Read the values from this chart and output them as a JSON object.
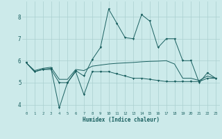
{
  "xlabel": "Humidex (Indice chaleur)",
  "bg_color": "#cceaea",
  "grid_color": "#aacfcf",
  "line_color": "#1a6060",
  "xlim": [
    -0.5,
    23.5
  ],
  "ylim": [
    3.7,
    8.7
  ],
  "xticks": [
    0,
    1,
    2,
    3,
    4,
    5,
    6,
    7,
    8,
    9,
    10,
    11,
    12,
    13,
    14,
    15,
    16,
    17,
    18,
    19,
    20,
    21,
    22,
    23
  ],
  "yticks": [
    4,
    5,
    6,
    7,
    8
  ],
  "line1_x": [
    0,
    1,
    2,
    3,
    4,
    5,
    6,
    7,
    8,
    9,
    10,
    11,
    12,
    13,
    14,
    15,
    16,
    17,
    18,
    19,
    20,
    21,
    22,
    23
  ],
  "line1_y": [
    5.9,
    5.5,
    5.6,
    5.6,
    5.0,
    5.0,
    5.55,
    5.3,
    6.05,
    6.6,
    8.35,
    7.7,
    7.05,
    7.0,
    8.1,
    7.8,
    6.6,
    7.0,
    7.0,
    6.0,
    6.0,
    5.0,
    5.45,
    5.2
  ],
  "line2_x": [
    0,
    1,
    2,
    3,
    4,
    5,
    6,
    7,
    8,
    9,
    10,
    11,
    12,
    13,
    14,
    15,
    16,
    17,
    18,
    19,
    20,
    21,
    22,
    23
  ],
  "line2_y": [
    5.9,
    5.5,
    5.6,
    5.65,
    3.85,
    5.0,
    5.5,
    4.45,
    5.5,
    5.5,
    5.5,
    5.4,
    5.3,
    5.2,
    5.2,
    5.15,
    5.1,
    5.05,
    5.05,
    5.05,
    5.05,
    5.05,
    5.2,
    5.2
  ],
  "line3_x": [
    0,
    1,
    2,
    3,
    4,
    5,
    6,
    7,
    8,
    9,
    10,
    11,
    12,
    13,
    14,
    15,
    16,
    17,
    18,
    19,
    20,
    21,
    22,
    23
  ],
  "line3_y": [
    5.9,
    5.55,
    5.65,
    5.7,
    5.15,
    5.15,
    5.6,
    5.55,
    5.75,
    5.8,
    5.85,
    5.88,
    5.9,
    5.92,
    5.95,
    5.97,
    5.98,
    6.0,
    5.85,
    5.2,
    5.2,
    5.1,
    5.3,
    5.2
  ]
}
